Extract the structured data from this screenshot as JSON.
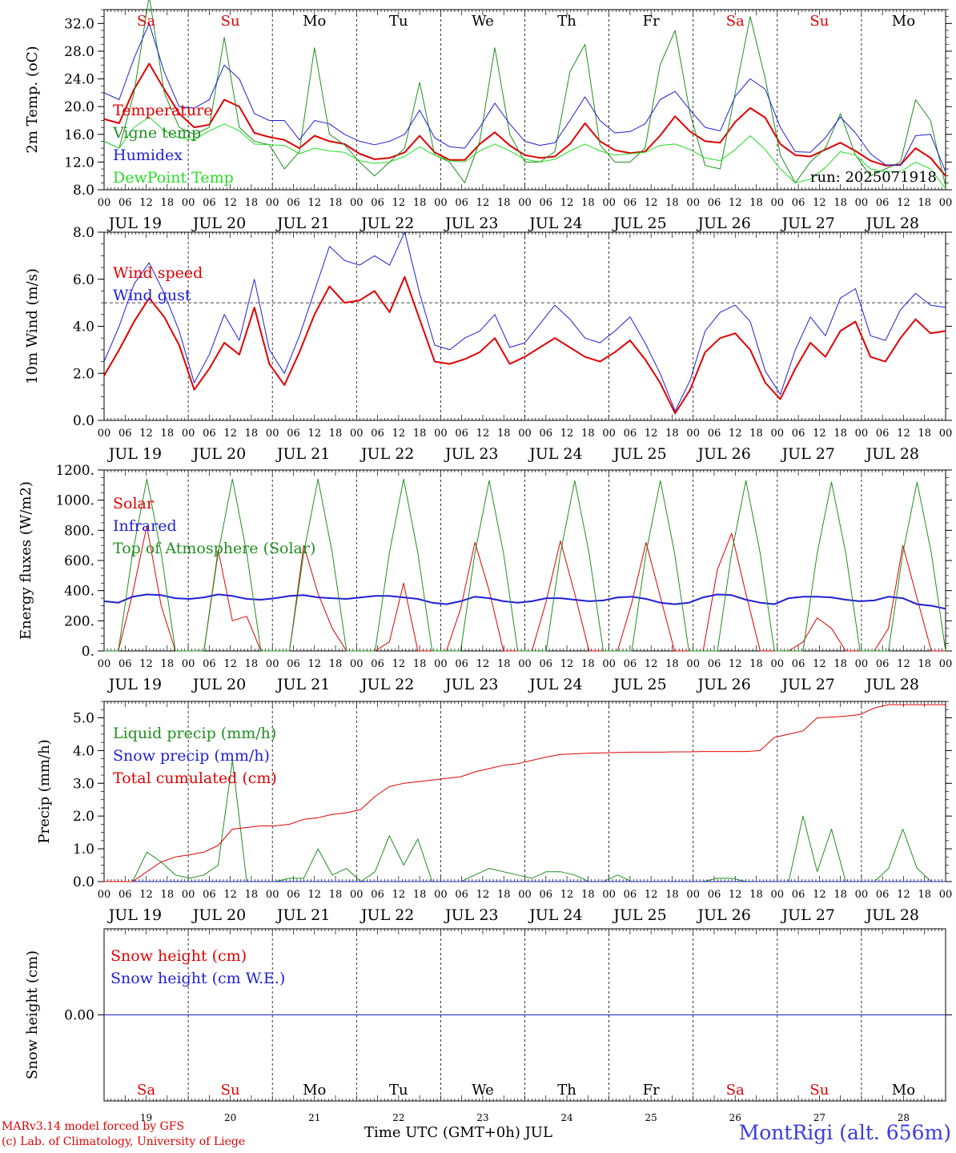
{
  "chart_data": [
    {
      "type": "line",
      "ylabel": "2m Temp. (oC)",
      "ylim": [
        8,
        34
      ],
      "yticks": [
        "8.0",
        "12.0",
        "16.0",
        "20.0",
        "24.0",
        "28.0",
        "32.0"
      ],
      "annotation": "run: 2025071918",
      "x_hours": "6-hourly steps from JUL 19 00 UTC to JUL 29 00 UTC",
      "series": [
        {
          "name": "Temperature",
          "color": "#e00000",
          "width": 2,
          "values": [
            18.2,
            17.6,
            22.5,
            26.2,
            22.5,
            19.0,
            17.0,
            17.4,
            21.0,
            20.0,
            16.2,
            15.6,
            15.2,
            14.0,
            15.8,
            15.0,
            14.6,
            13.2,
            12.4,
            12.6,
            13.4,
            15.8,
            13.4,
            12.3,
            12.3,
            14.6,
            16.3,
            14.4,
            13.0,
            12.6,
            12.8,
            14.6,
            17.6,
            15.0,
            13.7,
            13.3,
            13.5,
            15.8,
            18.6,
            16.4,
            15.0,
            14.8,
            17.8,
            19.8,
            18.4,
            14.6,
            13.0,
            12.8,
            13.8,
            14.8,
            13.6,
            12.2,
            11.5,
            11.6,
            14.0,
            12.6,
            10.0
          ]
        },
        {
          "name": "Vigne temp",
          "color": "#1f8f1f",
          "width": 1,
          "values": [
            15.0,
            14.0,
            22.0,
            36.0,
            22.0,
            17.0,
            16.0,
            17.0,
            30.0,
            17.0,
            15.0,
            14.5,
            11.0,
            13.5,
            28.5,
            16.0,
            14.5,
            12.0,
            10.0,
            12.0,
            14.0,
            23.5,
            13.0,
            12.0,
            9.0,
            15.0,
            28.5,
            16.0,
            12.0,
            12.0,
            13.5,
            25.0,
            29.0,
            14.5,
            12.0,
            12.0,
            14.0,
            26.0,
            31.0,
            19.0,
            11.5,
            11.0,
            22.0,
            33.0,
            24.0,
            13.0,
            9.0,
            12.0,
            14.0,
            19.0,
            13.0,
            10.0,
            11.0,
            12.0,
            21.0,
            18.0,
            8.5
          ]
        },
        {
          "name": "Humidex",
          "color": "#1f1fd6",
          "width": 1,
          "values": [
            22.0,
            21.0,
            27.0,
            32.0,
            25.0,
            20.0,
            19.8,
            21.0,
            26.0,
            24.0,
            19.0,
            18.0,
            18.0,
            15.2,
            18.0,
            17.5,
            16.0,
            15.0,
            14.5,
            15.0,
            16.0,
            19.5,
            15.5,
            14.2,
            14.0,
            17.0,
            20.5,
            17.5,
            15.0,
            14.4,
            14.8,
            18.0,
            21.4,
            18.0,
            16.2,
            16.4,
            17.5,
            21.0,
            22.2,
            19.5,
            17.0,
            16.5,
            21.5,
            24.0,
            22.5,
            17.0,
            13.5,
            13.4,
            15.5,
            18.5,
            16.2,
            13.2,
            11.6,
            11.5,
            15.8,
            16.0,
            10.6
          ]
        },
        {
          "name": "DewPoint Temp",
          "color": "#22dd22",
          "width": 1,
          "values": [
            15.0,
            14.0,
            17.0,
            18.5,
            16.5,
            15.5,
            15.2,
            16.5,
            17.5,
            16.5,
            14.6,
            14.5,
            14.4,
            13.2,
            14.0,
            13.6,
            13.4,
            12.2,
            11.8,
            12.0,
            12.8,
            14.2,
            13.0,
            12.2,
            12.0,
            13.6,
            14.6,
            13.6,
            12.4,
            12.0,
            12.4,
            13.6,
            14.6,
            13.6,
            13.0,
            13.2,
            13.4,
            14.4,
            14.6,
            13.8,
            12.6,
            12.2,
            13.8,
            15.8,
            13.8,
            11.0,
            9.0,
            9.5,
            11.2,
            13.5,
            13.0,
            11.0,
            10.6,
            10.6,
            12.0,
            11.0,
            8.2
          ]
        }
      ]
    },
    {
      "type": "line",
      "ylabel": "10m Wind (m/s)",
      "ylim": [
        0,
        8
      ],
      "yticks": [
        "0.0",
        "2.0",
        "4.0",
        "6.0",
        "8.0"
      ],
      "reference_line": 5,
      "series": [
        {
          "name": "Wind speed",
          "color": "#e00000",
          "width": 2,
          "values": [
            1.9,
            3.0,
            4.2,
            5.2,
            4.4,
            3.2,
            1.3,
            2.2,
            3.3,
            2.8,
            4.8,
            2.4,
            1.5,
            2.9,
            4.5,
            5.7,
            5.0,
            5.1,
            5.5,
            4.6,
            6.1,
            4.3,
            2.5,
            2.4,
            2.6,
            2.9,
            3.5,
            2.4,
            2.7,
            3.1,
            3.5,
            3.1,
            2.7,
            2.5,
            2.9,
            3.4,
            2.6,
            1.6,
            0.3,
            1.3,
            2.9,
            3.5,
            3.7,
            3.0,
            1.6,
            0.9,
            2.2,
            3.3,
            2.7,
            3.8,
            4.2,
            2.7,
            2.5,
            3.5,
            4.3,
            3.7,
            3.8
          ]
        },
        {
          "name": "Wind gust",
          "color": "#1f1fd6",
          "width": 1,
          "values": [
            2.5,
            4.0,
            5.8,
            6.7,
            5.4,
            3.8,
            1.6,
            2.8,
            4.5,
            3.4,
            6.0,
            3.0,
            2.0,
            3.6,
            5.5,
            7.4,
            6.8,
            6.6,
            7.0,
            6.6,
            8.0,
            5.4,
            3.2,
            3.0,
            3.5,
            3.8,
            4.5,
            3.1,
            3.3,
            4.1,
            4.9,
            4.3,
            3.5,
            3.3,
            3.8,
            4.4,
            3.3,
            2.0,
            0.4,
            1.7,
            3.8,
            4.6,
            4.9,
            4.2,
            2.1,
            1.1,
            3.0,
            4.4,
            3.6,
            5.2,
            5.6,
            3.6,
            3.4,
            4.7,
            5.4,
            4.9,
            4.8
          ]
        }
      ]
    },
    {
      "type": "line",
      "ylabel": "Energy fluxes (W/m2)",
      "ylim": [
        0,
        1200
      ],
      "yticks": [
        "0.",
        "200.",
        "400.",
        "600.",
        "800.",
        "1000.",
        "1200."
      ],
      "series": [
        {
          "name": "Solar",
          "color": "#e00000",
          "width": 1,
          "values": [
            0,
            0,
            380,
            830,
            300,
            0,
            0,
            0,
            670,
            200,
            230,
            0,
            0,
            0,
            700,
            380,
            150,
            0,
            0,
            0,
            60,
            450,
            0,
            0,
            0,
            280,
            720,
            400,
            0,
            0,
            0,
            330,
            730,
            380,
            0,
            0,
            0,
            320,
            720,
            360,
            0,
            0,
            0,
            540,
            780,
            380,
            0,
            0,
            0,
            60,
            220,
            150,
            0,
            0,
            0,
            150,
            700,
            350,
            0,
            0
          ]
        },
        {
          "name": "Infrared",
          "color": "#1f1fd6",
          "width": 2,
          "values": [
            330,
            320,
            360,
            375,
            370,
            350,
            345,
            355,
            375,
            365,
            345,
            340,
            350,
            365,
            370,
            355,
            350,
            345,
            355,
            365,
            365,
            355,
            345,
            320,
            310,
            330,
            360,
            350,
            330,
            320,
            330,
            350,
            350,
            340,
            330,
            335,
            355,
            360,
            345,
            320,
            310,
            320,
            355,
            375,
            370,
            340,
            320,
            310,
            350,
            360,
            360,
            355,
            340,
            330,
            335,
            360,
            350,
            310,
            300,
            280
          ]
        },
        {
          "name": "Top of Atmosphere (Solar)",
          "color": "#1f8f1f",
          "width": 1,
          "values": [
            0,
            0,
            650,
            1140,
            650,
            0,
            0,
            0,
            650,
            1140,
            650,
            0,
            0,
            0,
            650,
            1140,
            650,
            0,
            0,
            0,
            650,
            1140,
            650,
            0,
            0,
            0,
            650,
            1130,
            650,
            0,
            0,
            0,
            650,
            1130,
            650,
            0,
            0,
            0,
            650,
            1130,
            650,
            0,
            0,
            0,
            650,
            1130,
            650,
            0,
            0,
            0,
            650,
            1120,
            650,
            0,
            0,
            0,
            650,
            1120,
            650,
            0
          ]
        }
      ]
    },
    {
      "type": "line",
      "ylabel": "Precip (mm/h)",
      "ylim": [
        0,
        5.5
      ],
      "yticks": [
        "0.0",
        "1.0",
        "2.0",
        "3.0",
        "4.0",
        "5.0"
      ],
      "series": [
        {
          "name": "Liquid precip (mm/h)",
          "color": "#1f8f1f",
          "width": 1,
          "values": [
            0,
            0,
            0,
            0.9,
            0.6,
            0.2,
            0.1,
            0.2,
            0.5,
            3.7,
            0,
            0,
            0,
            0.1,
            0.1,
            1.0,
            0.2,
            0.4,
            0,
            0.3,
            1.4,
            0.5,
            1.3,
            0,
            0,
            0,
            0.2,
            0.4,
            0.3,
            0.2,
            0.1,
            0.3,
            0.3,
            0.2,
            0,
            0,
            0.2,
            0,
            0,
            0,
            0,
            0,
            0,
            0.1,
            0.1,
            0,
            0,
            0,
            0,
            2.0,
            0.3,
            1.6,
            0,
            0,
            0,
            0.4,
            1.6,
            0.4,
            0,
            0
          ]
        },
        {
          "name": "Snow precip (mm/h)",
          "color": "#1f1fd6",
          "width": 1,
          "values": [
            0,
            0,
            0,
            0,
            0,
            0,
            0,
            0,
            0,
            0,
            0,
            0,
            0,
            0,
            0,
            0,
            0,
            0,
            0,
            0,
            0,
            0,
            0,
            0,
            0,
            0,
            0,
            0,
            0,
            0,
            0,
            0,
            0,
            0,
            0,
            0,
            0,
            0,
            0,
            0,
            0,
            0,
            0,
            0,
            0,
            0,
            0,
            0,
            0,
            0,
            0,
            0,
            0,
            0,
            0,
            0,
            0,
            0,
            0,
            0
          ]
        },
        {
          "name": "Total cumulated (cm)",
          "color": "#e00000",
          "width": 1,
          "values": [
            0,
            0,
            0,
            0.3,
            0.6,
            0.75,
            0.82,
            0.9,
            1.1,
            1.6,
            1.65,
            1.7,
            1.7,
            1.75,
            1.9,
            1.95,
            2.05,
            2.1,
            2.2,
            2.6,
            2.9,
            3.0,
            3.05,
            3.1,
            3.15,
            3.2,
            3.35,
            3.45,
            3.55,
            3.6,
            3.7,
            3.8,
            3.88,
            3.9,
            3.92,
            3.93,
            3.94,
            3.95,
            3.95,
            3.95,
            3.96,
            3.96,
            3.97,
            3.97,
            3.97,
            3.97,
            4.0,
            4.4,
            4.5,
            4.6,
            5.0,
            5.02,
            5.05,
            5.1,
            5.3,
            5.4,
            5.4,
            5.4,
            5.4,
            5.4
          ]
        }
      ]
    },
    {
      "type": "line",
      "ylabel": "Snow height (cm)",
      "ylim": [
        -1,
        1
      ],
      "yticks": [
        "0.00"
      ],
      "series": [
        {
          "name": "Snow height (cm)",
          "color": "#e00000",
          "width": 1,
          "values": [
            0,
            0
          ]
        },
        {
          "name": "Snow height (cm W.E.)",
          "color": "#1f1fd6",
          "width": 1,
          "values": [
            0,
            0
          ]
        }
      ]
    }
  ],
  "days": [
    {
      "abbr": "Sa",
      "date": "JUL 19",
      "num": "19",
      "weekend": true
    },
    {
      "abbr": "Su",
      "date": "JUL 20",
      "num": "20",
      "weekend": true
    },
    {
      "abbr": "Mo",
      "date": "JUL 21",
      "num": "21",
      "weekend": false
    },
    {
      "abbr": "Tu",
      "date": "JUL 22",
      "num": "22",
      "weekend": false
    },
    {
      "abbr": "We",
      "date": "JUL 23",
      "num": "23",
      "weekend": false
    },
    {
      "abbr": "Th",
      "date": "JUL 24",
      "num": "24",
      "weekend": false
    },
    {
      "abbr": "Fr",
      "date": "JUL 25",
      "num": "25",
      "weekend": false
    },
    {
      "abbr": "Sa",
      "date": "JUL 26",
      "num": "26",
      "weekend": true
    },
    {
      "abbr": "Su",
      "date": "JUL 27",
      "num": "27",
      "weekend": true
    },
    {
      "abbr": "Mo",
      "date": "JUL 28",
      "num": "28",
      "weekend": false
    }
  ],
  "hour_labels": [
    "00",
    "06",
    "12",
    "18"
  ],
  "footer": {
    "model": "MARv3.14 model forced by GFS",
    "copyright": "(c) Lab. of Climatology, University of Liege",
    "axis_title": "Time UTC (GMT+0h) JUL",
    "station": "MontRigi (alt. 656m)"
  },
  "colors": {
    "weekend": "#e00000",
    "weekday": "#000000"
  }
}
